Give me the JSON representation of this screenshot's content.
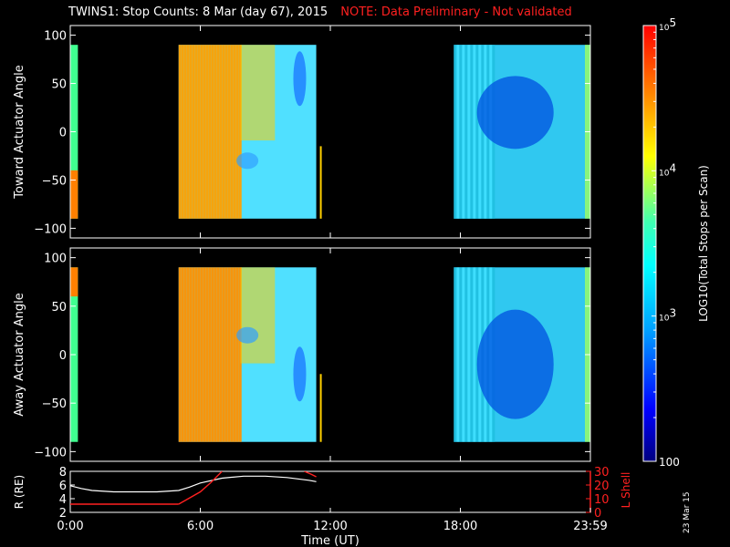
{
  "title": {
    "main": "TWINS1: Stop Counts:  8 Mar (day  67), 2015",
    "note": "NOTE: Data Preliminary - Not validated"
  },
  "date_stamp": "23 Mar 15",
  "colors": {
    "background": "#000000",
    "frame": "#ffffff",
    "note": "#ff2020",
    "lshell": "#ff2020"
  },
  "chart_data": [
    {
      "type": "heatmap",
      "name": "toward",
      "ylabel": "Toward Actuator Angle",
      "ylim": [
        -110,
        110
      ],
      "yticks": [
        100,
        50,
        0,
        -50,
        -100
      ],
      "xlim": [
        0,
        24
      ],
      "coverage_intervals_ut": [
        [
          0,
          0.1
        ],
        [
          5.0,
          11.35
        ],
        [
          17.7,
          24
        ]
      ],
      "colorbar": {
        "label": "LOG10(Total Stops per Scan)",
        "scale": "log",
        "range": [
          100,
          100000
        ],
        "tick_labels": [
          "10^5",
          "10^4",
          "10^3",
          "100"
        ]
      }
    },
    {
      "type": "heatmap",
      "name": "away",
      "ylabel": "Away Actuator Angle",
      "ylim": [
        -110,
        110
      ],
      "yticks": [
        100,
        50,
        0,
        -50,
        -100
      ],
      "xlim": [
        0,
        24
      ],
      "coverage_intervals_ut": [
        [
          0,
          0.1
        ],
        [
          5.0,
          11.35
        ],
        [
          17.7,
          24
        ]
      ]
    },
    {
      "type": "line",
      "name": "orbit",
      "ylabel": "R (RE)",
      "ylabel_right": "L Shell",
      "ylim": [
        2,
        8
      ],
      "yticks": [
        8,
        6,
        4,
        2
      ],
      "ylim_right": [
        0,
        30
      ],
      "yticks_right": [
        30,
        20,
        10,
        0
      ],
      "xlabel": "Time (UT)",
      "xticks": [
        "0:00",
        "6:00",
        "12:00",
        "18:00",
        "23:59"
      ],
      "xtick_values": [
        0,
        6,
        12,
        18,
        24
      ],
      "series": [
        {
          "axis": "left",
          "x": [
            0,
            0.5,
            1,
            2,
            3,
            4,
            5,
            5.5,
            6,
            7,
            8,
            9,
            10,
            11,
            11.35
          ],
          "values": [
            5.9,
            5.5,
            5.2,
            5.0,
            5.0,
            5.0,
            5.2,
            5.7,
            6.3,
            7.0,
            7.3,
            7.3,
            7.1,
            6.7,
            6.5
          ]
        },
        {
          "axis": "right",
          "segments": [
            {
              "x": [
                0,
                5.0
              ],
              "values": [
                6,
                6
              ]
            },
            {
              "x": [
                5.0,
                6.0,
                6.5,
                7.0
              ],
              "values": [
                6,
                15,
                22,
                30
              ]
            },
            {
              "x": [
                10.8,
                11.1,
                11.35
              ],
              "values": [
                30,
                28,
                26
              ]
            }
          ]
        }
      ]
    }
  ]
}
